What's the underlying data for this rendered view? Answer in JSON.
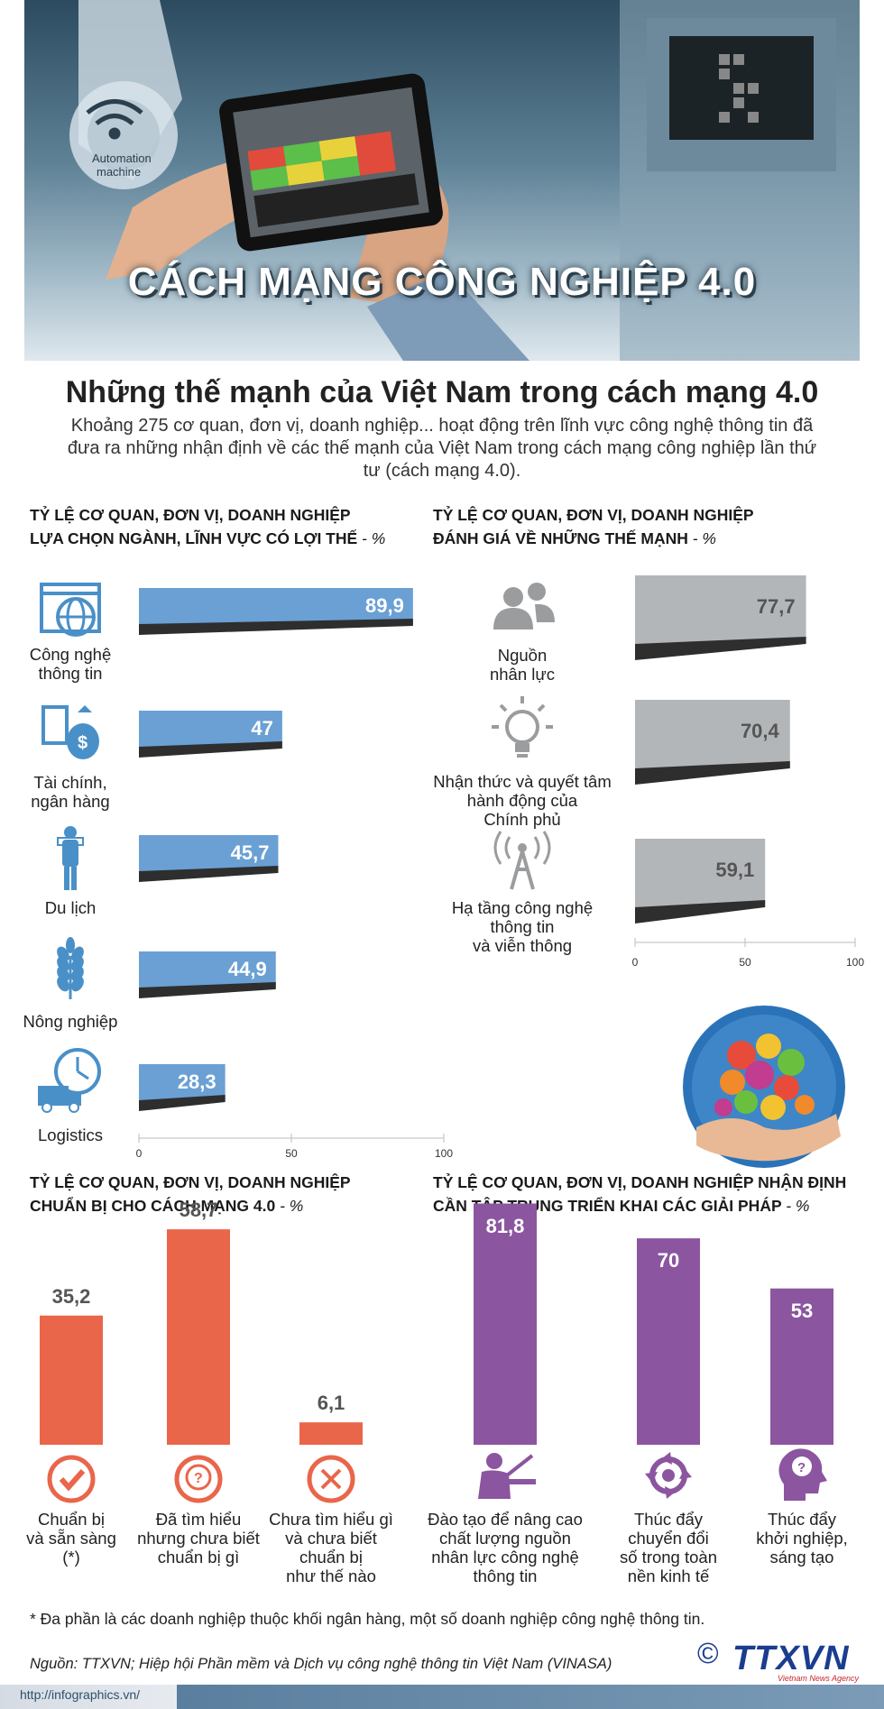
{
  "header": {
    "banner_title": "CÁCH MẠNG CÔNG NGHIỆP 4.0",
    "machine_label_1": "Automation",
    "machine_label_2": "machine"
  },
  "main_title": "Những thế mạnh của Việt Nam trong cách mạng 4.0",
  "intro": "Khoảng 275 cơ quan, đơn vị, doanh nghiệp... hoạt động trên lĩnh vực công nghệ thông tin đã đưa ra những nhận định về các thế mạnh của Việt Nam trong cách mạng công nghiệp lần thứ tư (cách mạng 4.0).",
  "colors": {
    "blue_bar": "#6aa0d4",
    "grey_bar": "#b3b6b9",
    "orange_bar": "#e9664b",
    "purple_bar": "#8b55a0",
    "icon_blue": "#4a90c8",
    "icon_grey": "#9a9c9e"
  },
  "chart_data": [
    {
      "type": "bar",
      "orientation": "horizontal",
      "title_line1": "TỶ LỆ CƠ QUAN, ĐƠN VỊ, DOANH NGHIỆP",
      "title_line2": "LỰA CHỌN NGÀNH, LĨNH VỰC CÓ LỢI THẾ",
      "unit": "- %",
      "categories": [
        "Công nghệ thông tin",
        "Tài chính, ngân hàng",
        "Du lịch",
        "Nông nghiệp",
        "Logistics"
      ],
      "label_lines": [
        [
          "Công nghệ",
          "thông tin"
        ],
        [
          "Tài chính,",
          "ngân hàng"
        ],
        [
          "Du lịch"
        ],
        [
          "Nông nghiệp"
        ],
        [
          "Logistics"
        ]
      ],
      "value_labels": [
        "89,9",
        "47",
        "45,7",
        "44,9",
        "28,3"
      ],
      "values": [
        89.9,
        47,
        45.7,
        44.9,
        28.3
      ],
      "icons": [
        "globe-web-icon",
        "money-bag-icon",
        "traveler-icon",
        "wheat-icon",
        "delivery-truck-clock-icon"
      ],
      "xlim": [
        0,
        100
      ],
      "ticks": [
        "0",
        "50",
        "100"
      ]
    },
    {
      "type": "bar",
      "orientation": "horizontal",
      "title_line1": "TỶ LỆ CƠ QUAN, ĐƠN VỊ, DOANH NGHIỆP",
      "title_line2": "ĐÁNH GIÁ VỀ NHỮNG THẾ MẠNH",
      "unit": "- %",
      "categories": [
        "Nguồn nhân lực",
        "Nhận thức và quyết tâm hành động của Chính phủ",
        "Hạ tầng công nghệ thông tin và viễn thông"
      ],
      "label_lines": [
        [
          "Nguồn",
          "nhân lực"
        ],
        [
          "Nhận thức và quyết tâm",
          "hành động của",
          "Chính phủ"
        ],
        [
          "Hạ tầng công nghệ",
          "thông tin",
          "và viễn thông"
        ]
      ],
      "value_labels": [
        "77,7",
        "70,4",
        "59,1"
      ],
      "values": [
        77.7,
        70.4,
        59.1
      ],
      "icons": [
        "people-icon",
        "lightbulb-icon",
        "antenna-tower-icon"
      ],
      "xlim": [
        0,
        100
      ],
      "ticks": [
        "0",
        "50",
        "100"
      ]
    },
    {
      "type": "bar",
      "orientation": "vertical",
      "title_line1": "TỶ LỆ CƠ QUAN, ĐƠN VỊ, DOANH NGHIỆP",
      "title_line2": "CHUẨN BỊ CHO CÁCH MẠNG 4.0",
      "unit": "- %",
      "categories": [
        "Chuẩn bị và sẵn sàng (*)",
        "Đã tìm hiểu nhưng chưa biết chuẩn bị gì",
        "Chưa tìm hiểu gì và chưa biết chuẩn bị như thế nào"
      ],
      "label_lines": [
        [
          "Chuẩn bị",
          "và sẵn sàng",
          "(*)"
        ],
        [
          "Đã tìm hiểu",
          "nhưng chưa biết",
          "chuẩn bị gì"
        ],
        [
          "Chưa tìm hiểu gì",
          "và chưa biết",
          "chuẩn bị",
          "như thế nào"
        ]
      ],
      "value_labels": [
        "35,2",
        "58,7",
        "6,1"
      ],
      "values": [
        35.2,
        58.7,
        6.1
      ],
      "icons": [
        "check-circle-icon",
        "question-bubble-icon",
        "cross-circle-icon"
      ]
    },
    {
      "type": "bar",
      "orientation": "vertical",
      "title_line1": "TỶ LỆ CƠ QUAN, ĐƠN VỊ, DOANH NGHIỆP NHẬN ĐỊNH",
      "title_line2": "CẦN TẬP TRUNG TRIỂN KHAI CÁC GIẢI PHÁP",
      "unit": " - %",
      "categories": [
        "Đào tạo để nâng cao chất lượng nguồn nhân lực công nghệ thông tin",
        "Thúc đẩy chuyển đổi số trong toàn nền kinh tế",
        "Thúc đẩy khởi nghiệp, sáng tạo"
      ],
      "label_lines": [
        [
          "Đào tạo để nâng cao",
          "chất lượng nguồn",
          "nhân lực công nghệ",
          "thông tin"
        ],
        [
          "Thúc đẩy",
          "chuyển đổi",
          "số trong toàn",
          "nền kinh tế"
        ],
        [
          "Thúc đẩy",
          "khởi nghiệp,",
          "sáng tạo"
        ]
      ],
      "value_labels": [
        "81,8",
        "70",
        "53"
      ],
      "values": [
        81.8,
        70,
        53
      ],
      "icons": [
        "teacher-icon",
        "cycle-arrows-icon",
        "head-question-icon"
      ]
    }
  ],
  "footnote": "* Đa phần là các doanh nghiệp thuộc khối ngân hàng, một số doanh nghiệp công nghệ thông tin.",
  "source": "Nguồn: TTXVN; Hiệp hội Phần mềm và Dịch vụ công nghệ thông tin Việt Nam (VINASA)",
  "url": "http://infographics.vn/",
  "logo": {
    "copyright": "©",
    "name": "TTXVN",
    "sub": "Vietnam News Agency"
  }
}
